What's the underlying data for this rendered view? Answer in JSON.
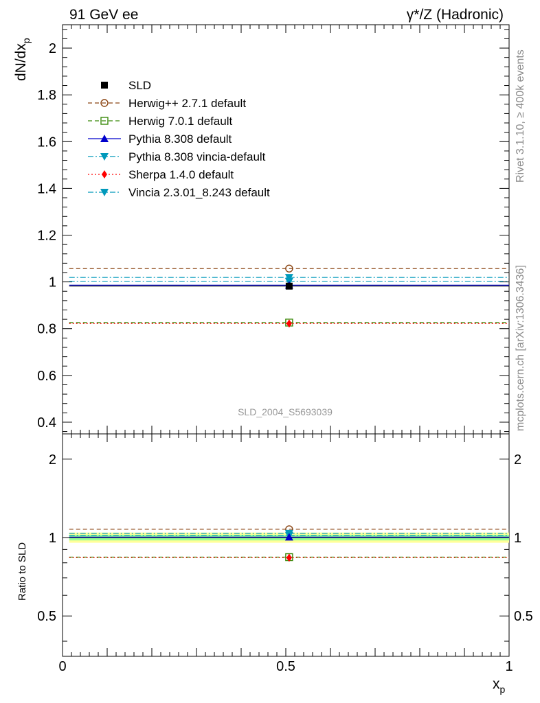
{
  "header": {
    "energy_label": "91 GeV ee",
    "process_label": "γ*/Z (Hadronic)"
  },
  "side_labels": {
    "rivet": "Rivet 3.1.10, ≥ 400k events",
    "mcplots": "mcplots.cern.ch [arXiv:1306.3436]"
  },
  "watermark": "SLD_2004_S5693039",
  "colors": {
    "sld": "#000000",
    "herwigpp": "#8b4513",
    "herwig7": "#3a8a0a",
    "pythia": "#0000cc",
    "pythia_vincia": "#0099bb",
    "sherpa": "#ff0000",
    "vincia": "#0099bb",
    "band_yellow": "#ffff99",
    "band_green": "#99ff99"
  },
  "chart_data": [
    {
      "type": "line",
      "panel": "main",
      "ylabel": "dN/dx_p",
      "ylabel_main": "dN/dx",
      "ylabel_sub": "p",
      "xlim": [
        0,
        1
      ],
      "ylim": [
        0.35,
        2.1
      ],
      "y_ticks": [
        "0.4",
        "0.6",
        "0.8",
        "1",
        "1.2",
        "1.4",
        "1.6",
        "1.8",
        "2"
      ],
      "legend_position": "top-left",
      "x_bin": [
        0.015,
        1.0
      ],
      "x_center": 0.5075,
      "series": [
        {
          "name": "SLD",
          "value": 0.982,
          "style": "data",
          "marker": "square-filled",
          "color_key": "sld"
        },
        {
          "name": "Herwig++ 2.7.1 default",
          "value": 1.057,
          "style": "dashed",
          "marker": "circle-open",
          "color_key": "herwigpp"
        },
        {
          "name": "Herwig 7.0.1 default",
          "value": 0.826,
          "style": "dashed",
          "marker": "square-open",
          "color_key": "herwig7"
        },
        {
          "name": "Pythia 8.308 default",
          "value": 0.986,
          "style": "solid",
          "marker": "triangle-up",
          "color_key": "pythia"
        },
        {
          "name": "Pythia 8.308 vincia-default",
          "value": 1.019,
          "style": "dashdot",
          "marker": "triangle-down",
          "color_key": "pythia_vincia"
        },
        {
          "name": "Sherpa 1.4.0 default",
          "value": 0.822,
          "style": "dotted",
          "marker": "diamond",
          "color_key": "sherpa"
        },
        {
          "name": "Vincia 2.3.01_8.243 default",
          "value": 1.002,
          "style": "dashdot",
          "marker": "triangle-down",
          "color_key": "vincia"
        }
      ]
    },
    {
      "type": "line",
      "panel": "ratio",
      "ylabel": "Ratio to SLD",
      "xlabel": "x_p",
      "xlabel_main": "x",
      "xlabel_sub": "p",
      "yscale": "log",
      "xlim": [
        0,
        1
      ],
      "ylim": [
        0.35,
        2.5
      ],
      "y_ticks": [
        "0.5",
        "1",
        "2"
      ],
      "x_ticks": [
        "0",
        "0.5",
        "1"
      ],
      "uncertainty_band": {
        "yellow": [
          0.955,
          1.045
        ],
        "green": [
          0.975,
          1.025
        ]
      },
      "series": [
        {
          "name": "Herwig++ 2.7.1 default",
          "value": 1.076
        },
        {
          "name": "Herwig 7.0.1 default",
          "value": 0.841
        },
        {
          "name": "Pythia 8.308 default",
          "value": 1.004
        },
        {
          "name": "Pythia 8.308 vincia-default",
          "value": 1.038
        },
        {
          "name": "Sherpa 1.4.0 default",
          "value": 0.837
        },
        {
          "name": "Vincia 2.3.01_8.243 default",
          "value": 1.02
        }
      ]
    }
  ]
}
